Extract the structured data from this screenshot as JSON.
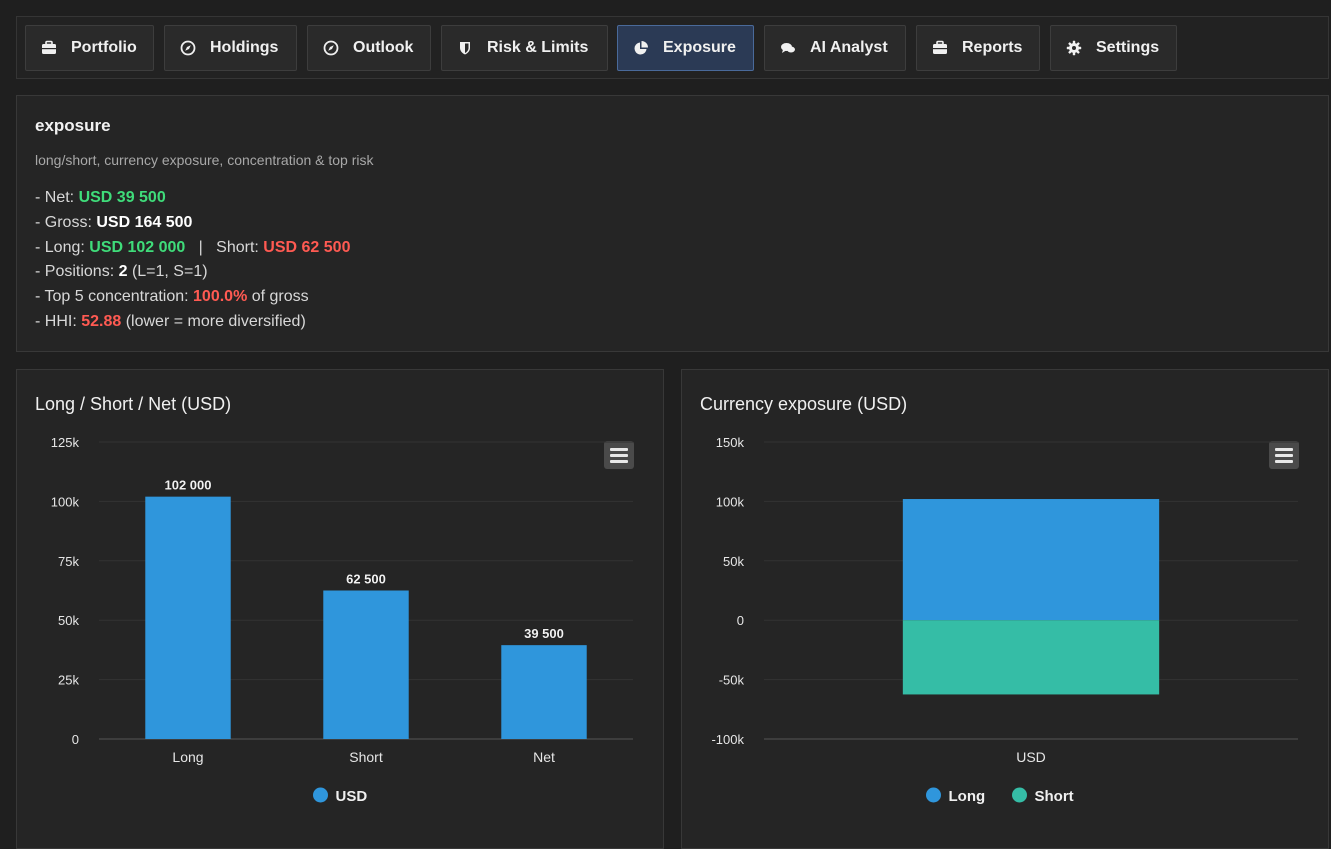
{
  "tabs": [
    {
      "label": "Portfolio",
      "icon": "briefcase-icon"
    },
    {
      "label": "Holdings",
      "icon": "compass-icon"
    },
    {
      "label": "Outlook",
      "icon": "compass-icon"
    },
    {
      "label": "Risk & Limits",
      "icon": "shield-icon"
    },
    {
      "label": "Exposure",
      "icon": "pie-chart-icon",
      "active": true
    },
    {
      "label": "AI Analyst",
      "icon": "chat-icon"
    },
    {
      "label": "Reports",
      "icon": "briefcase-icon"
    },
    {
      "label": "Settings",
      "icon": "gear-icon"
    }
  ],
  "summary": {
    "title": "exposure",
    "subtitle": "long/short, currency exposure, concentration & top risk",
    "net_prefix": "- Net: ",
    "net_value": "USD 39 500",
    "gross_prefix": "- Gross: ",
    "gross_value": "USD 164 500",
    "long_prefix": "- Long: ",
    "long_value": "USD 102 000",
    "short_sep": "   |   Short: ",
    "short_value": "USD 62 500",
    "positions_prefix": "- Positions: ",
    "positions_value": "2",
    "positions_suffix": " (L=1, S=1)",
    "top5_prefix": "- Top 5 concentration: ",
    "top5_value": "100.0%",
    "top5_suffix": " of gross",
    "hhi_prefix": "- HHI: ",
    "hhi_value": "52.88",
    "hhi_suffix": " (lower = more diversified)"
  },
  "colors": {
    "long": "#2f96dc",
    "short": "#35bda6",
    "positive": "#3fdc7a",
    "negative": "#ff5a52"
  },
  "chart_data": [
    {
      "type": "bar",
      "title": "Long / Short / Net (USD)",
      "categories": [
        "Long",
        "Short",
        "Net"
      ],
      "series": [
        {
          "name": "USD",
          "values": [
            102000,
            62500,
            39500
          ]
        }
      ],
      "data_labels": [
        "102 000",
        "62 500",
        "39 500"
      ],
      "ylim": [
        0,
        125000
      ],
      "yticks": [
        0,
        25000,
        50000,
        75000,
        100000,
        125000
      ],
      "ytick_labels": [
        "0",
        "25k",
        "50k",
        "75k",
        "100k",
        "125k"
      ],
      "legend": "bottom"
    },
    {
      "type": "bar",
      "stacked": true,
      "title": "Currency exposure (USD)",
      "categories": [
        "USD"
      ],
      "series": [
        {
          "name": "Long",
          "values": [
            102000
          ]
        },
        {
          "name": "Short",
          "values": [
            -62500
          ]
        }
      ],
      "ylim": [
        -100000,
        150000
      ],
      "yticks": [
        -100000,
        -50000,
        0,
        50000,
        100000,
        150000
      ],
      "ytick_labels": [
        "-100k",
        "-50k",
        "0",
        "50k",
        "100k",
        "150k"
      ],
      "legend": "bottom"
    }
  ]
}
